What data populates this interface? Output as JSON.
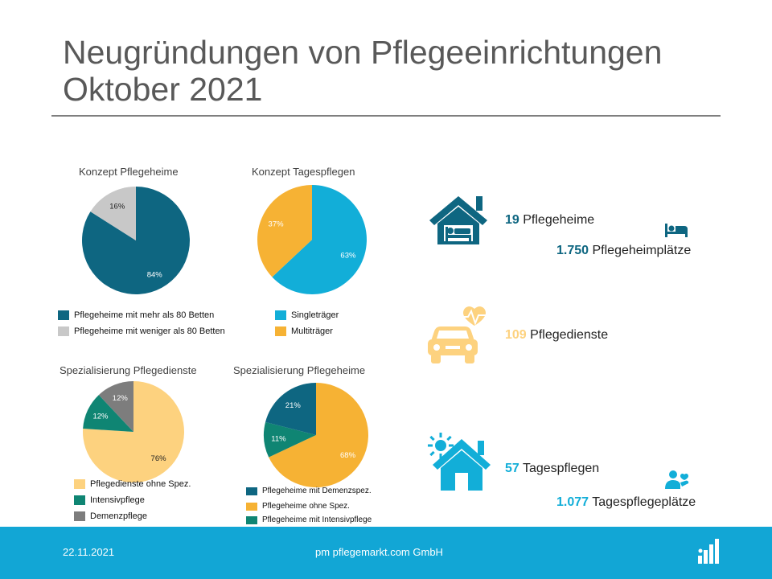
{
  "title_line1": "Neugründungen von Pflegeeinrichtungen",
  "title_line2": "Oktober 2021",
  "chart_data": [
    {
      "type": "pie",
      "title": "Konzept Pflegeheime",
      "slices": [
        {
          "label": "Pflegeheime mit mehr als 80 Betten",
          "value": 84,
          "text": "84%",
          "color": "#0e6681"
        },
        {
          "label": "Pflegeheime mit weniger als 80 Betten",
          "value": 16,
          "text": "16%",
          "color": "#c8c8c8"
        }
      ]
    },
    {
      "type": "pie",
      "title": "Konzept Tagespflegen",
      "slices": [
        {
          "label": "Singleträger",
          "value": 63,
          "text": "63%",
          "color": "#12aed8"
        },
        {
          "label": "Multiträger",
          "value": 37,
          "text": "37%",
          "color": "#f6b234"
        }
      ]
    },
    {
      "type": "pie",
      "title": "Spezialisierung Pflegedienste",
      "slices": [
        {
          "label": "Pflegedienste ohne Spez.",
          "value": 76,
          "text": "76%",
          "color": "#fdd27f"
        },
        {
          "label": "Intensivpflege",
          "value": 12,
          "text": "12%",
          "color": "#0f8573"
        },
        {
          "label": "Demenzpflege",
          "value": 12,
          "text": "12%",
          "color": "#7d7d7d"
        }
      ]
    },
    {
      "type": "pie",
      "title": "Spezialisierung Pflegeheime",
      "slices": [
        {
          "label": "Pflegeheime ohne Spez.",
          "value": 68,
          "text": "68%",
          "color": "#f6b234"
        },
        {
          "label": "Pflegeheime mit Intensivpflege",
          "value": 11,
          "text": "11%",
          "color": "#0f8573"
        },
        {
          "label": "Pflegeheime mit Demenzspez.",
          "value": 21,
          "text": "21%",
          "color": "#0e6681"
        }
      ],
      "legend_order": [
        "Pflegeheime mit Demenzspez.",
        "Pflegeheime ohne Spez.",
        "Pflegeheime mit Intensivpflege"
      ]
    }
  ],
  "stats": {
    "pflegeheime": {
      "number": "19",
      "label": "Pflegeheime",
      "number_color": "#0e6681",
      "icon": "house-bed-icon"
    },
    "pflegeheimplaetze": {
      "number": "1.750",
      "label": "Pflegeheimplätze",
      "number_color": "#0e6681",
      "icon": "bed-icon"
    },
    "pflegedienste": {
      "number": "109",
      "label": "Pflegedienste",
      "number_color": "#fdd27f",
      "icon": "car-heartbeat-icon"
    },
    "tagespflegen": {
      "number": "57",
      "label": "Tagespflegen",
      "number_color": "#12aed8",
      "icon": "house-sun-icon"
    },
    "tagespflegeplaetze": {
      "number": "1.077",
      "label": "Tagespflegeplätze",
      "number_color": "#12aed8",
      "icon": "person-care-icon"
    }
  },
  "footer": {
    "date": "22.11.2021",
    "company": "pm pflegemarkt.com GmbH",
    "logo": "pflegemarkt-logo"
  }
}
